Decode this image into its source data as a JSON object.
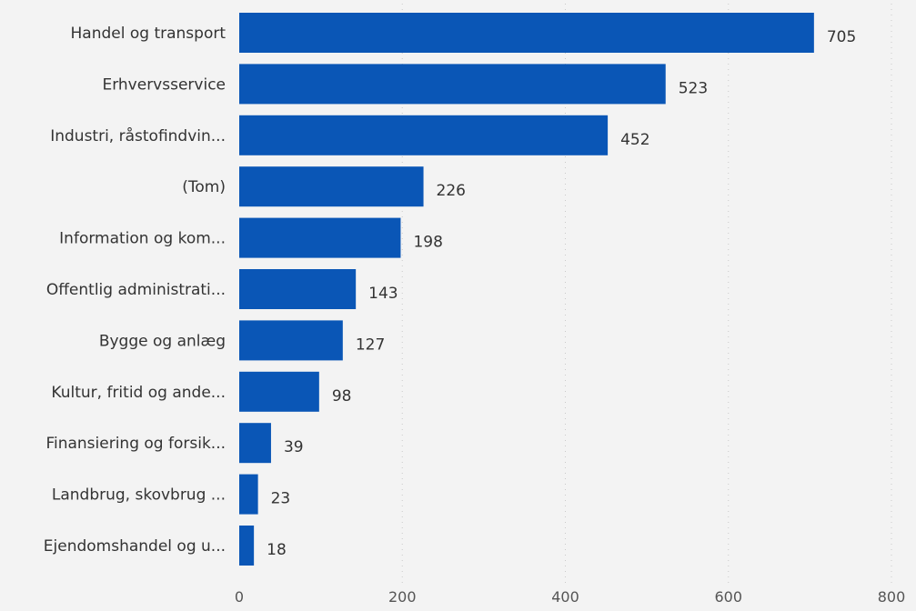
{
  "chart_data": {
    "type": "bar",
    "orientation": "horizontal",
    "title": "",
    "xlabel": "",
    "ylabel": "",
    "categories": [
      "Handel og transport",
      "Erhvervsservice",
      "Industri, råstofindvin...",
      "(Tom)",
      "Information og kom...",
      "Offentlig administrati...",
      "Bygge og anlæg",
      "Kultur, fritid og ande...",
      "Finansiering og forsik...",
      "Landbrug, skovbrug ...",
      "Ejendomshandel og u..."
    ],
    "values": [
      705,
      523,
      452,
      226,
      198,
      143,
      127,
      98,
      39,
      23,
      18
    ],
    "xlim": [
      0,
      800
    ],
    "xticks": [
      0,
      200,
      400,
      600,
      800
    ],
    "xtick_labels": [
      "0",
      "200",
      "400",
      "600",
      "800"
    ],
    "grid": "vertical-dotted",
    "legend": "none",
    "data_labels": true
  },
  "colors": {
    "bar": "#0a56b6",
    "background": "#f3f3f3",
    "text": "#333333",
    "grid": "#c9c9c9"
  }
}
